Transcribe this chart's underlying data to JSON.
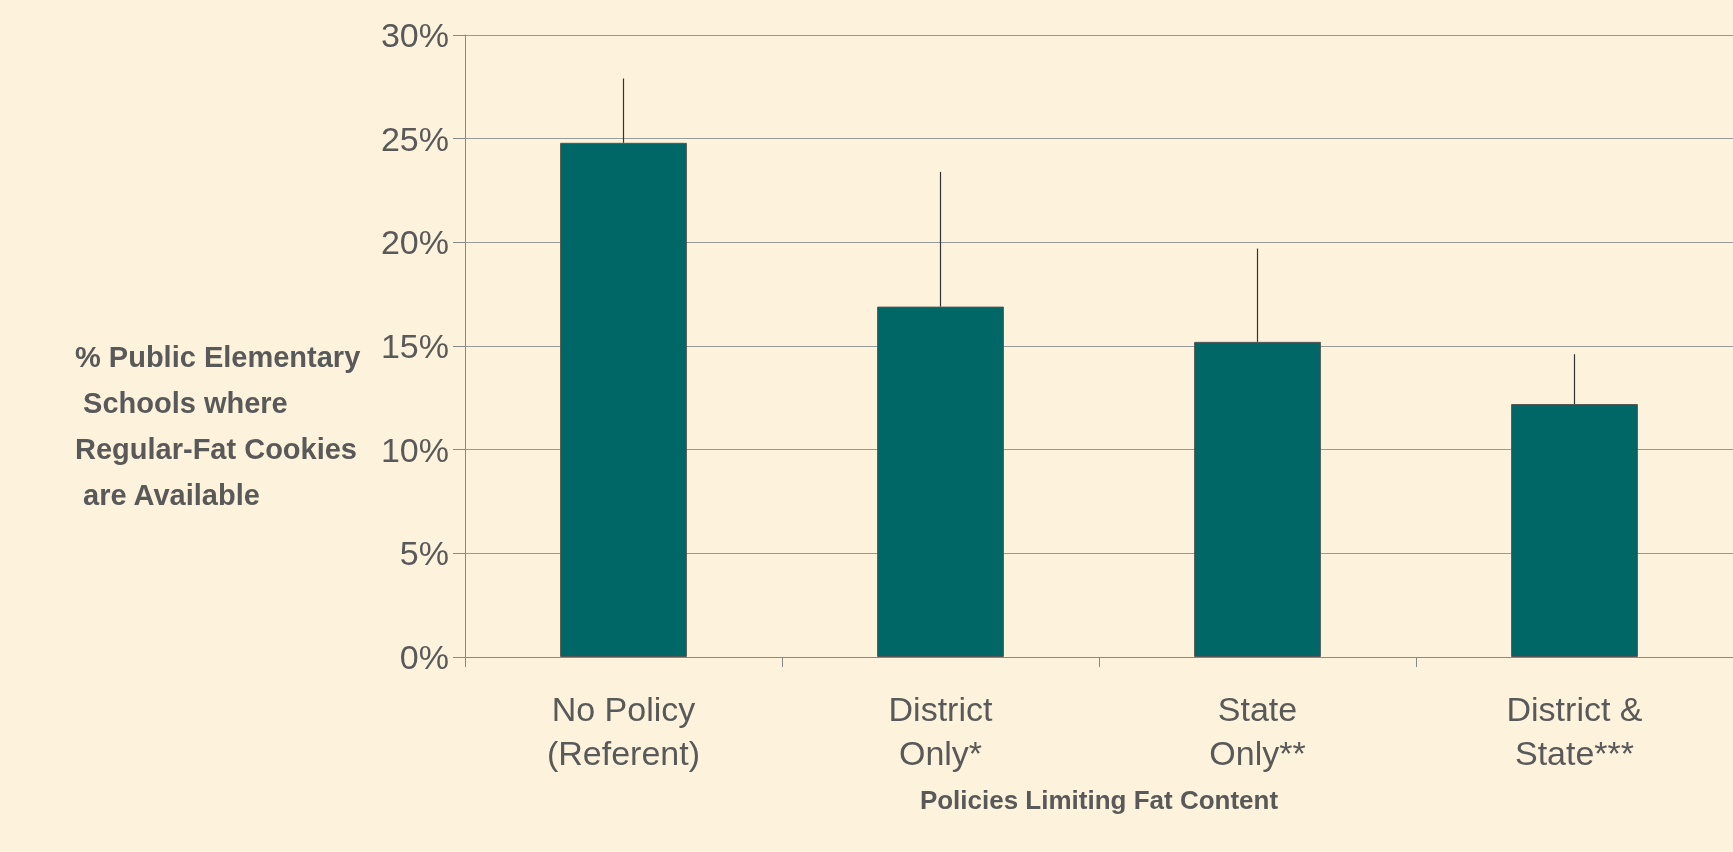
{
  "chart_data": {
    "type": "bar",
    "xlabel": "Policies Limiting Fat Content",
    "ylabel": "% Public Elementary Schools where Regular-Fat Cookies are Available",
    "categories": [
      "No Policy\n(Referent)",
      "District\nOnly*",
      "State\nOnly**",
      "District &\nState***"
    ],
    "values": [
      24.8,
      16.9,
      15.2,
      12.2
    ],
    "errors": [
      [
        24.8,
        27.9
      ],
      [
        16.9,
        23.4
      ],
      [
        15.2,
        19.7
      ],
      [
        12.2,
        14.6
      ]
    ],
    "color": "#006666",
    "ylim": [
      0,
      30
    ],
    "yticks": [
      {
        "value": 0,
        "label": "0%"
      },
      {
        "value": 5,
        "label": "5%"
      },
      {
        "value": 10,
        "label": "10%"
      },
      {
        "value": 15,
        "label": "15%"
      },
      {
        "value": 20,
        "label": "20%"
      },
      {
        "value": 25,
        "label": "25%"
      },
      {
        "value": 30,
        "label": "30%"
      }
    ],
    "grid": "y"
  }
}
